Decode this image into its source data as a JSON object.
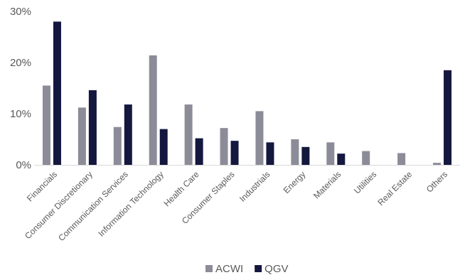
{
  "chart_data": {
    "type": "bar",
    "categories": [
      "Financials",
      "Consumer Discretionary",
      "Communication Services",
      "Information Technology",
      "Health Care",
      "Consumer Staples",
      "Industrials",
      "Energy",
      "Materials",
      "Utilities",
      "Real Estate",
      "Others"
    ],
    "series": [
      {
        "name": "ACWI",
        "color": "#8c8c99",
        "values": [
          15.5,
          11.2,
          7.4,
          21.4,
          11.8,
          7.2,
          10.5,
          5.0,
          4.4,
          2.7,
          2.3,
          0.4
        ]
      },
      {
        "name": "QGV",
        "color": "#14183f",
        "values": [
          28.0,
          14.6,
          11.8,
          7.0,
          5.2,
          4.7,
          4.4,
          3.5,
          2.2,
          0.0,
          0.0,
          18.5
        ]
      }
    ],
    "y_ticks": [
      "0%",
      "10%",
      "20%",
      "30%"
    ],
    "ylim": [
      0,
      30
    ],
    "grid": false,
    "legend": "bottom-center",
    "axis_color": "#d9d9d9"
  }
}
